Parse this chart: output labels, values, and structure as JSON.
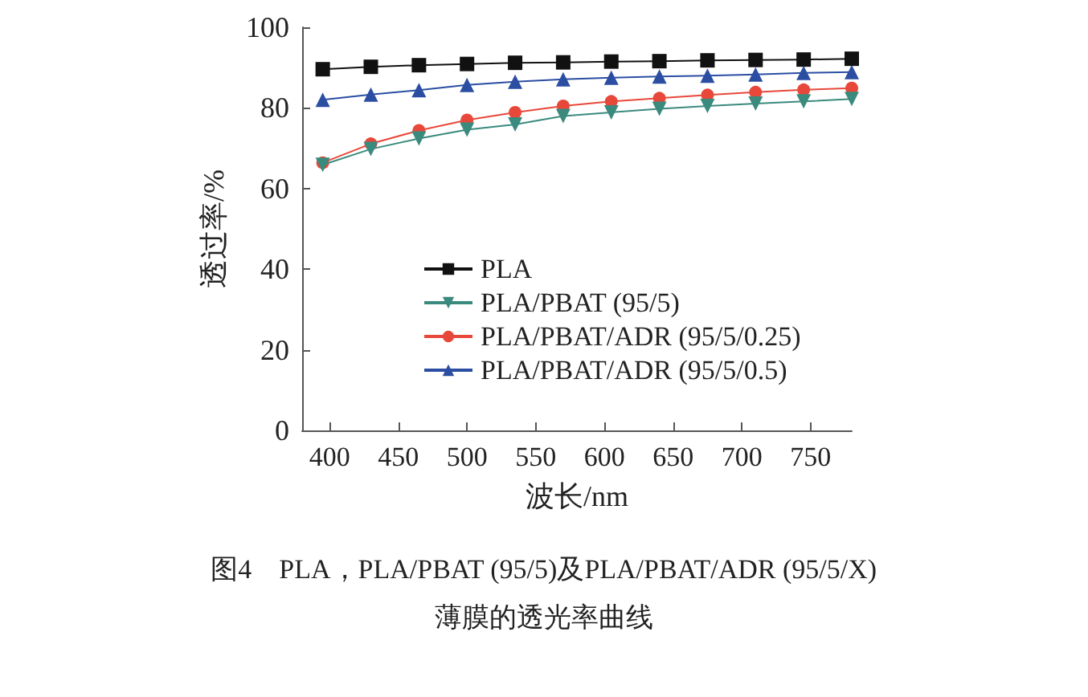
{
  "chart_data": {
    "type": "line",
    "title": "图4　PLA，PLA/PBAT (95/5)及PLA/PBAT/ADR (95/5/X)\n薄膜的透光率曲线",
    "xlabel": "波长/nm",
    "ylabel": "透过率/%",
    "x": [
      395,
      430,
      465,
      500,
      535,
      570,
      605,
      640,
      675,
      710,
      745,
      780
    ],
    "xlim": [
      380,
      780
    ],
    "xticks": [
      400,
      450,
      500,
      550,
      600,
      650,
      700,
      750
    ],
    "ylim": [
      0,
      100
    ],
    "yticks": [
      0,
      20,
      40,
      60,
      80,
      100
    ],
    "grid": false,
    "legend": "center",
    "line_style": "solid",
    "series": [
      {
        "name": "PLA",
        "color": "#111111",
        "marker": "square",
        "values": [
          89.6,
          90.2,
          90.6,
          90.9,
          91.2,
          91.3,
          91.5,
          91.6,
          91.8,
          91.9,
          92.0,
          92.2
        ]
      },
      {
        "name": "PLA/PBAT (95/5)",
        "color": "#3a8a7e",
        "marker": "triangle-down",
        "values": [
          65.9,
          69.8,
          72.4,
          74.6,
          75.9,
          78.0,
          78.9,
          79.8,
          80.5,
          81.1,
          81.6,
          82.2
        ]
      },
      {
        "name": "PLA/PBAT/ADR (95/5/0.25)",
        "color": "#e8483a",
        "marker": "circle",
        "values": [
          66.4,
          71.1,
          74.4,
          77.0,
          78.9,
          80.5,
          81.6,
          82.4,
          83.2,
          83.9,
          84.5,
          84.9
        ]
      },
      {
        "name": "PLA/PBAT/ADR (95/5/0.5)",
        "color": "#2b4ea3",
        "marker": "triangle",
        "values": [
          82.0,
          83.3,
          84.4,
          85.7,
          86.5,
          87.1,
          87.5,
          87.8,
          88.0,
          88.3,
          88.7,
          88.9
        ]
      }
    ]
  }
}
